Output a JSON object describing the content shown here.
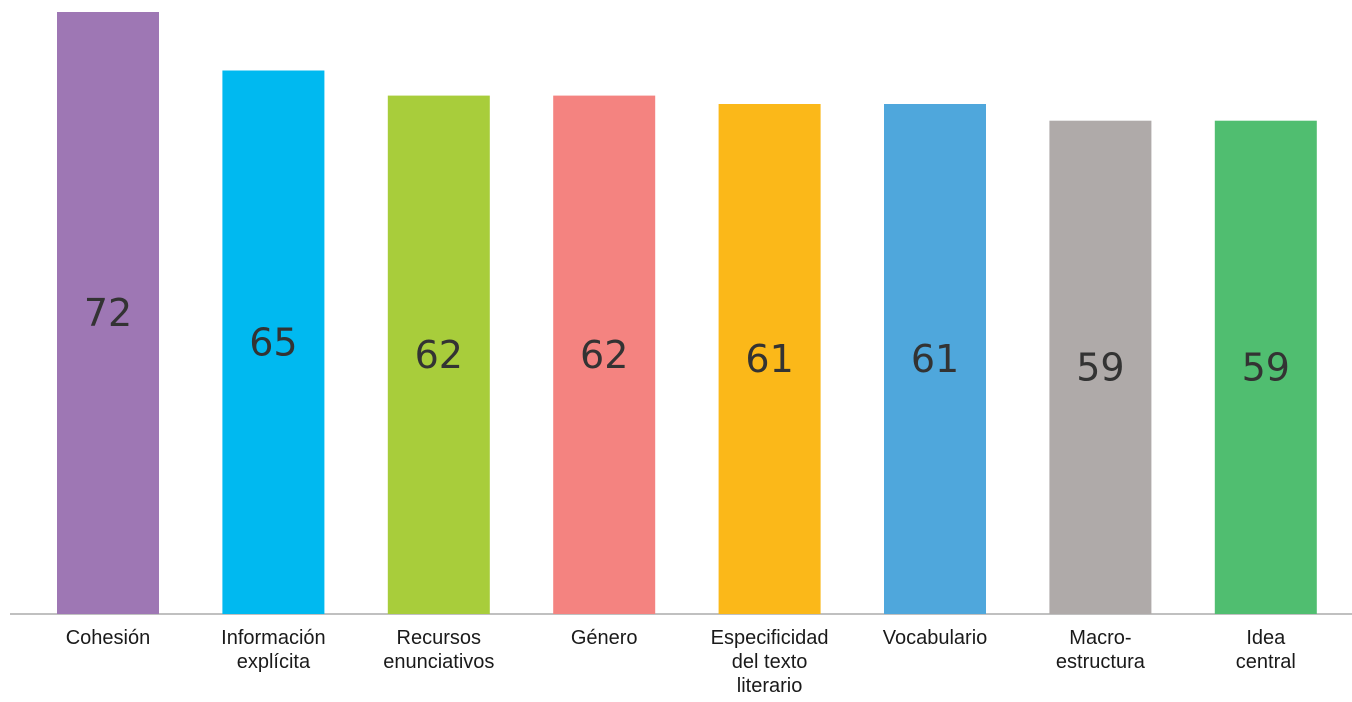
{
  "chart_data": {
    "type": "bar",
    "categories": [
      "Cohesión",
      "Información explícita",
      "Recursos enunciativos",
      "Género",
      "Especificidad del texto literario",
      "Vocabulario",
      "Macro-estructura",
      "Idea central"
    ],
    "category_lines": [
      [
        "Cohesión"
      ],
      [
        "Información",
        "explícita"
      ],
      [
        "Recursos",
        "enunciativos"
      ],
      [
        "Género"
      ],
      [
        "Especificidad",
        "del texto",
        "literario"
      ],
      [
        "Vocabulario"
      ],
      [
        "Macro-",
        "estructura"
      ],
      [
        "Idea",
        "central"
      ]
    ],
    "values": [
      72,
      65,
      62,
      62,
      61,
      61,
      59,
      59
    ],
    "colors": [
      "#9e77b4",
      "#00b9f0",
      "#a8cd3b",
      "#f48380",
      "#fbb819",
      "#4fa7dc",
      "#afaaa9",
      "#50be70"
    ],
    "ylim": [
      0,
      72
    ],
    "grid": false,
    "legend": "none",
    "title": "",
    "xlabel": "",
    "ylabel": ""
  }
}
